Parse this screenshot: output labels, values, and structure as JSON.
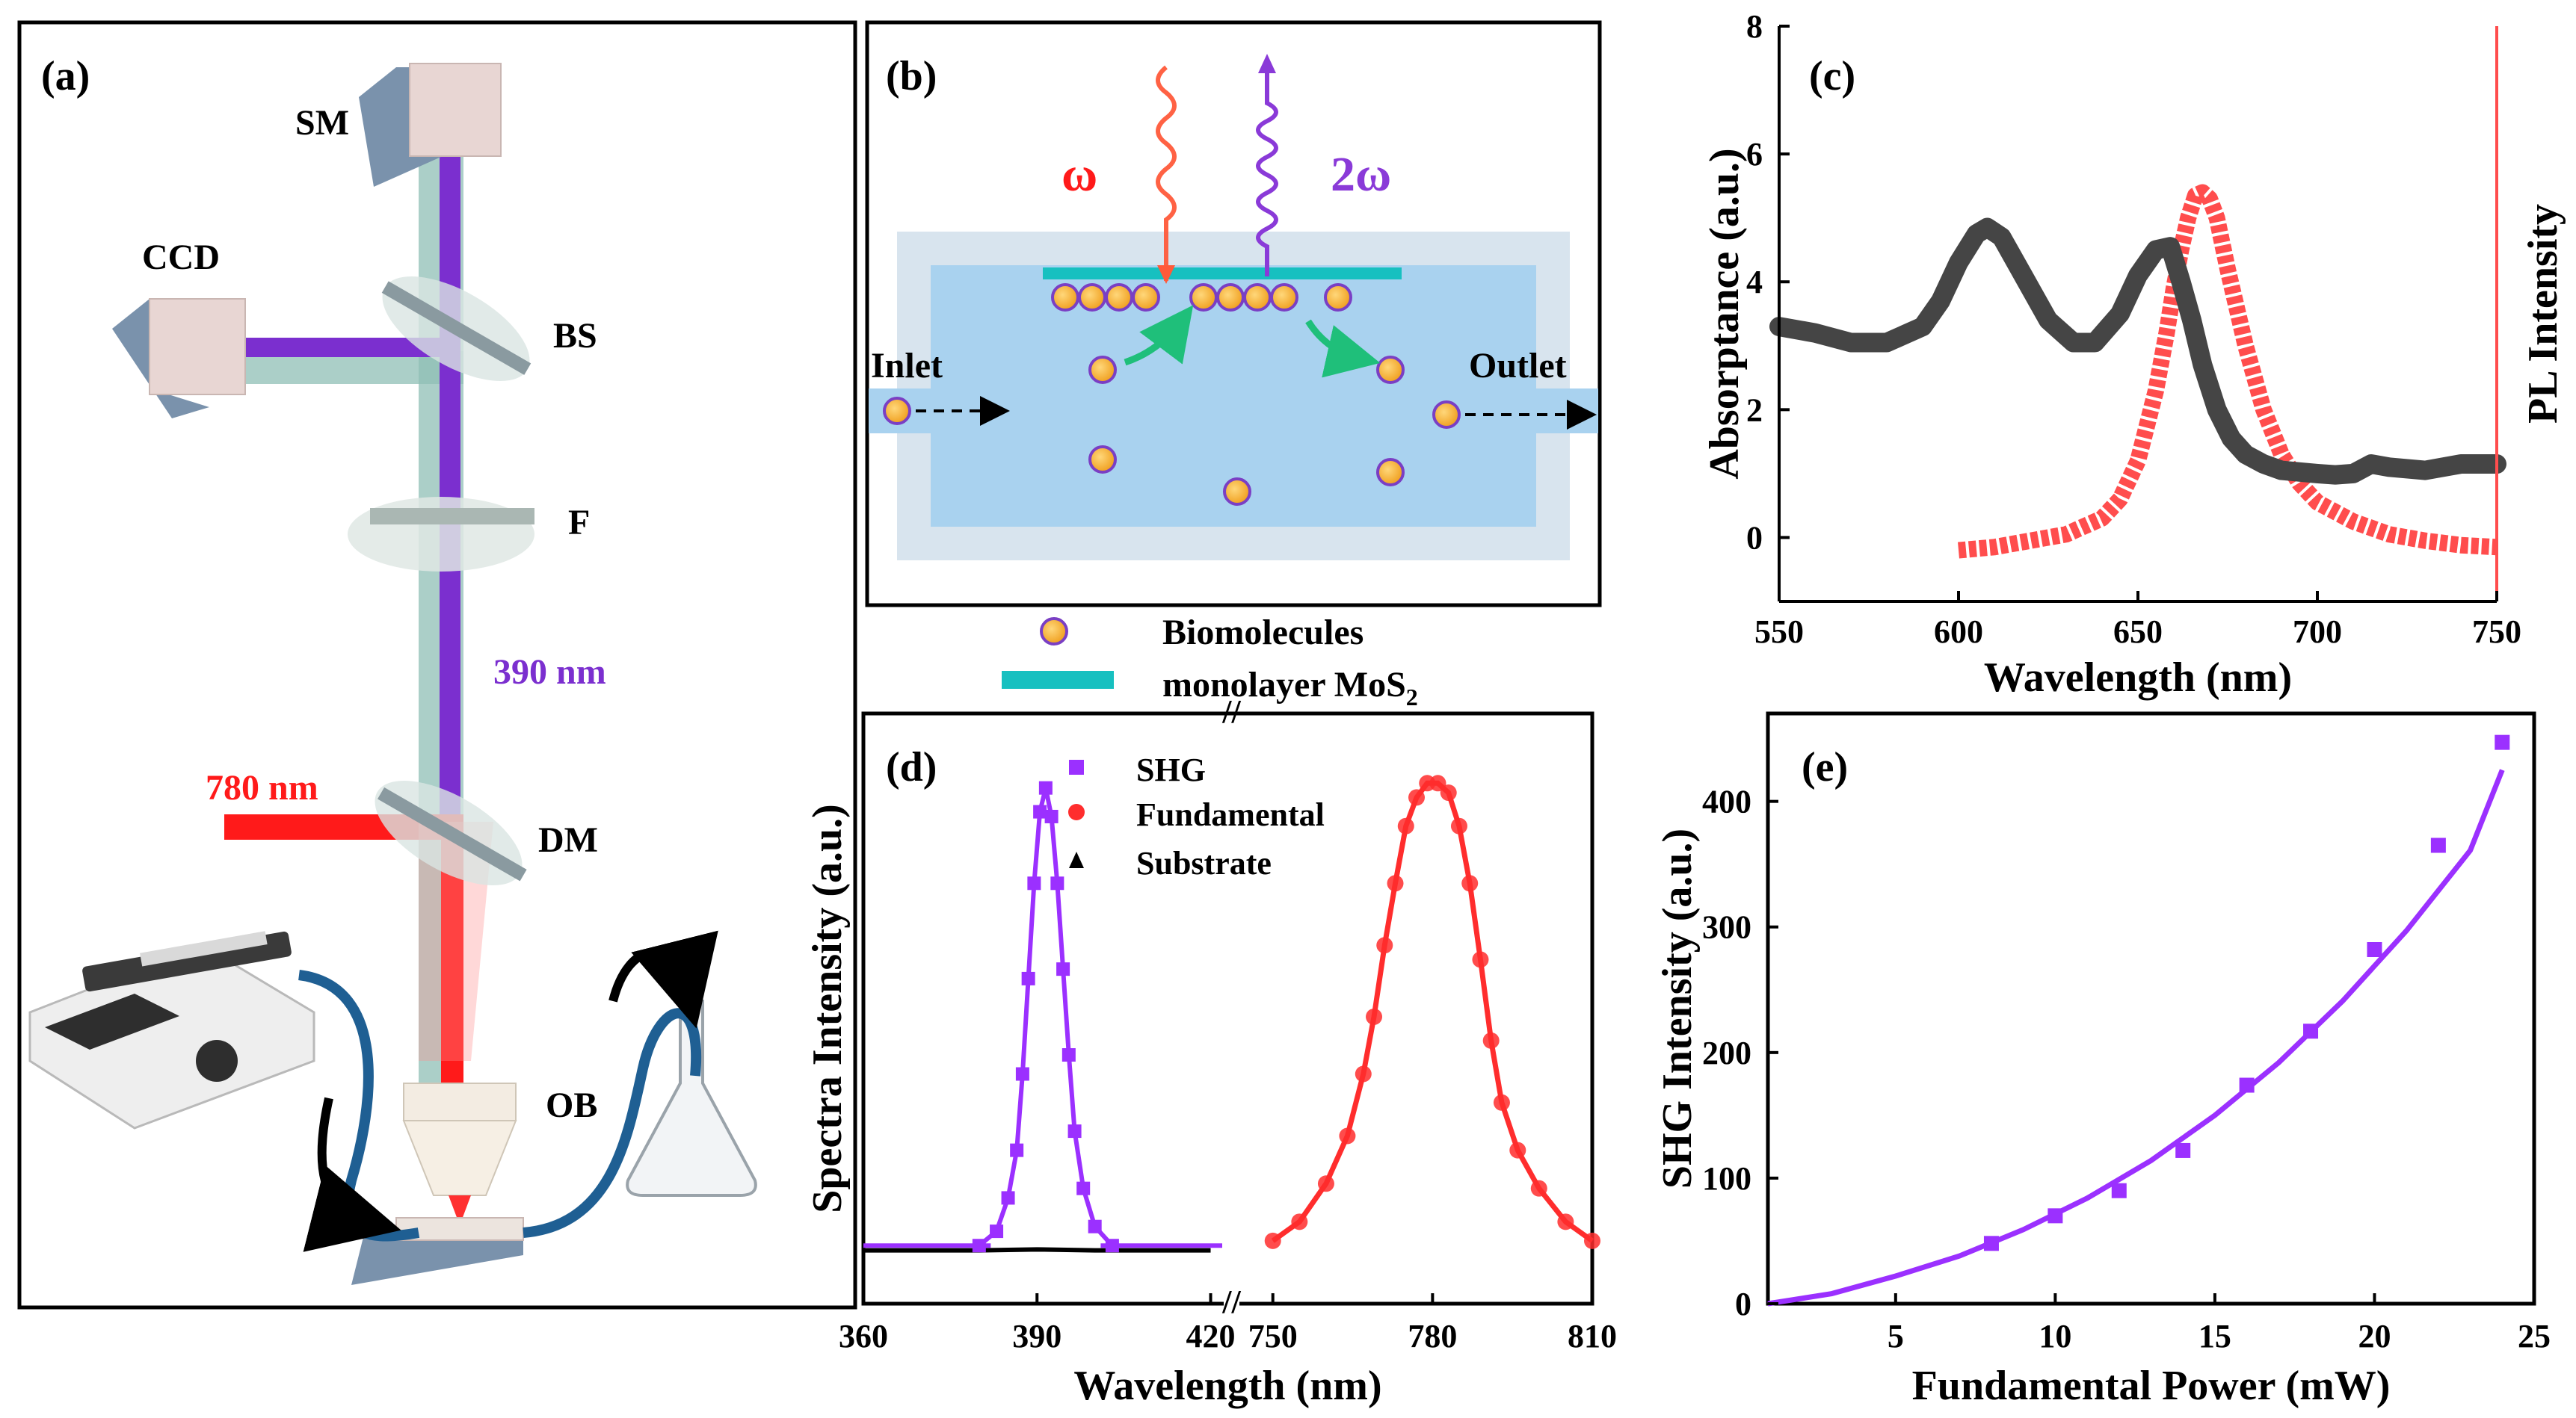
{
  "panel_labels": {
    "a": "(a)",
    "b": "(b)",
    "c": "(c)",
    "d": "(d)",
    "e": "(e)"
  },
  "panel_a": {
    "labels": {
      "sm": "SM",
      "ccd": "CCD",
      "bs": "BS",
      "f": "F",
      "dm": "DM",
      "ob": "OB"
    },
    "wavelength_purple": "390 nm",
    "wavelength_red": "780 nm",
    "colors": {
      "purple": "#7b2fcf",
      "red": "#ff1a1a",
      "teal": "#8fbfb5"
    }
  },
  "panel_b": {
    "omega": "ω",
    "two_omega": "2ω",
    "inlet": "Inlet",
    "outlet": "Outlet",
    "legend_bio": "Biomolecules",
    "legend_mos2": "monolayer MoS",
    "legend_mos2_sub": "2",
    "colors": {
      "chamber": "#a9d2ef",
      "wall": "#d8e4ee",
      "mos2": "#17c0c0",
      "particle": "#f3a52a",
      "particle_ring": "#7a3fc4",
      "arrow": "#1fbf7a"
    }
  },
  "chart_data": [
    {
      "id": "c",
      "type": "line",
      "xlabel": "Wavelength (nm)",
      "ylabel": "Absorptance (a.u.)",
      "y2label": "PL Intensity",
      "xlim": [
        550,
        750
      ],
      "ylim": [
        -1,
        8
      ],
      "xticks": [
        550,
        600,
        650,
        700,
        750
      ],
      "yticks": [
        0,
        2,
        4,
        6,
        8
      ],
      "series": [
        {
          "name": "Absorptance",
          "color": "#454545",
          "x": [
            550,
            560,
            570,
            580,
            590,
            595,
            600,
            605,
            608,
            612,
            618,
            625,
            632,
            638,
            645,
            650,
            655,
            659,
            662,
            665,
            668,
            672,
            676,
            680,
            685,
            690,
            700,
            705,
            710,
            715,
            720,
            730,
            740,
            750
          ],
          "y": [
            3.3,
            3.2,
            3.05,
            3.05,
            3.3,
            3.7,
            4.3,
            4.75,
            4.85,
            4.7,
            4.1,
            3.4,
            3.05,
            3.05,
            3.5,
            4.1,
            4.5,
            4.55,
            4.0,
            3.4,
            2.7,
            2.0,
            1.55,
            1.3,
            1.15,
            1.05,
            1.0,
            0.98,
            1.0,
            1.15,
            1.1,
            1.05,
            1.15,
            1.15
          ]
        },
        {
          "name": "PL Intensity",
          "color": "#ff4d4d",
          "x": [
            600,
            610,
            620,
            630,
            640,
            645,
            650,
            655,
            658,
            660,
            662,
            664,
            666,
            668,
            670,
            672,
            675,
            680,
            685,
            690,
            695,
            700,
            710,
            720,
            730,
            740,
            750
          ],
          "y": [
            -0.2,
            -0.15,
            -0.05,
            0.05,
            0.3,
            0.6,
            1.2,
            2.3,
            3.2,
            3.9,
            4.5,
            5.0,
            5.35,
            5.4,
            5.3,
            5.0,
            4.2,
            3.0,
            2.0,
            1.3,
            0.85,
            0.55,
            0.25,
            0.05,
            -0.05,
            -0.12,
            -0.15
          ]
        }
      ]
    },
    {
      "id": "d",
      "type": "line",
      "xlabel": "Wavelength (nm)",
      "ylabel": "Spectra Intensity (a.u.)",
      "x_break": "//",
      "xticks_left": [
        "360",
        "390",
        "420"
      ],
      "xticks_right": [
        "750",
        "780",
        "810"
      ],
      "xlim_left": [
        360,
        422
      ],
      "xlim_right": [
        744,
        810
      ],
      "ylim": [
        0,
        1.05
      ],
      "legend": [
        "SHG",
        "Fundamental",
        "Substrate"
      ],
      "series": [
        {
          "name": "SHG",
          "color": "#9b30ff",
          "marker": "square",
          "x": [
            380,
            383,
            385,
            386.5,
            387.5,
            388.5,
            389.5,
            390.5,
            391.5,
            392.5,
            393.5,
            394.5,
            395.5,
            396.5,
            398,
            400,
            403
          ],
          "y": [
            0.02,
            0.05,
            0.12,
            0.22,
            0.38,
            0.58,
            0.78,
            0.93,
            0.98,
            0.92,
            0.78,
            0.6,
            0.42,
            0.26,
            0.14,
            0.06,
            0.02
          ]
        },
        {
          "name": "Fundamental",
          "color": "#ff2d2d",
          "marker": "circle",
          "x": [
            750,
            755,
            760,
            764,
            767,
            769,
            771,
            773,
            775,
            777,
            779,
            781,
            783,
            785,
            787,
            789,
            791,
            793,
            796,
            800,
            805,
            810
          ],
          "y": [
            0.03,
            0.07,
            0.15,
            0.25,
            0.38,
            0.5,
            0.65,
            0.78,
            0.9,
            0.96,
            0.99,
            0.99,
            0.97,
            0.9,
            0.78,
            0.62,
            0.45,
            0.32,
            0.22,
            0.14,
            0.07,
            0.03
          ]
        },
        {
          "name": "Substrate",
          "color": "#000000",
          "marker": "triangle",
          "x": [
            360,
            370,
            380,
            390,
            400,
            410,
            420
          ],
          "y": [
            0.01,
            0.01,
            0.01,
            0.012,
            0.01,
            0.01,
            0.01
          ]
        }
      ]
    },
    {
      "id": "e",
      "type": "scatter",
      "xlabel": "Fundamental Power (mW)",
      "ylabel": "SHG Intensity (a.u.)",
      "xlim": [
        1,
        25
      ],
      "ylim": [
        0,
        470
      ],
      "xticks": [
        5,
        10,
        15,
        20,
        25
      ],
      "yticks": [
        0,
        100,
        200,
        300,
        400
      ],
      "series": [
        {
          "name": "data",
          "color": "#9b30ff",
          "x": [
            8,
            10,
            12,
            14,
            16,
            18,
            20,
            22,
            24
          ],
          "y": [
            48,
            70,
            90,
            122,
            174,
            217,
            282,
            365,
            447
          ]
        },
        {
          "name": "fit",
          "color": "#9b30ff",
          "x": [
            1,
            3,
            5,
            7,
            9,
            11,
            13,
            15,
            17,
            19,
            21,
            23,
            24
          ],
          "y": [
            0,
            8,
            22,
            38,
            59,
            84,
            114,
            150,
            192,
            241,
            297,
            361,
            425
          ]
        }
      ]
    }
  ]
}
